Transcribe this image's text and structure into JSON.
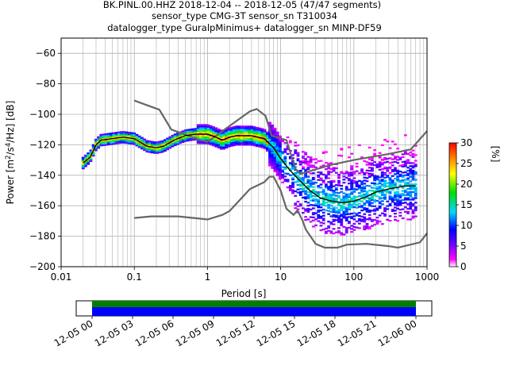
{
  "title_lines": [
    "BK.PINL.00.HHZ   2018-12-04 -- 2018-12-05  (47/47 segments)",
    "sensor_type CMG-3T sensor_sn T310034",
    "datalogger_type GuralpMinimus+ datalogger_sn MINP-DF59"
  ],
  "chart_data": {
    "type": "heatmap",
    "title": "BK.PINL.00.HHZ   2018-12-04 -- 2018-12-05  (47/47 segments)",
    "xlabel": "Period [s]",
    "ylabel_parts": [
      "Power [m",
      "2",
      "/s",
      "4",
      "/Hz] [dB]"
    ],
    "xscale": "log",
    "xlim": [
      0.01,
      1000
    ],
    "ylim": [
      -200,
      -50
    ],
    "xticks": [
      0.01,
      0.1,
      1,
      10,
      100,
      1000
    ],
    "xtick_labels": [
      "0.01",
      "0.1",
      "1",
      "10",
      "100",
      "1000"
    ],
    "yticks": [
      -200,
      -180,
      -160,
      -140,
      -120,
      -100,
      -80,
      -60
    ],
    "ytick_labels": [
      "−200",
      "−180",
      "−160",
      "−140",
      "−120",
      "−100",
      "−80",
      "−60"
    ],
    "grid": true,
    "colorbar": {
      "label": "[%]",
      "range": [
        0,
        30
      ],
      "ticks": [
        0,
        5,
        10,
        15,
        20,
        25,
        30
      ],
      "tick_labels": [
        "0",
        "5",
        "10",
        "15",
        "20",
        "25",
        "30"
      ]
    },
    "mean_curve": {
      "color": "#000000",
      "points": [
        [
          0.02,
          -132
        ],
        [
          0.025,
          -128
        ],
        [
          0.03,
          -120
        ],
        [
          0.035,
          -117
        ],
        [
          0.05,
          -116
        ],
        [
          0.07,
          -115
        ],
        [
          0.1,
          -116
        ],
        [
          0.15,
          -121
        ],
        [
          0.2,
          -122
        ],
        [
          0.25,
          -121
        ],
        [
          0.35,
          -117
        ],
        [
          0.5,
          -114
        ],
        [
          0.7,
          -113
        ],
        [
          1,
          -113
        ],
        [
          1.3,
          -115
        ],
        [
          1.6,
          -117
        ],
        [
          2,
          -115
        ],
        [
          2.5,
          -114
        ],
        [
          3,
          -114
        ],
        [
          4,
          -114
        ],
        [
          6,
          -116
        ],
        [
          8,
          -122
        ],
        [
          10,
          -129
        ],
        [
          13,
          -136
        ],
        [
          17,
          -142
        ],
        [
          25,
          -150
        ],
        [
          35,
          -155
        ],
        [
          50,
          -157
        ],
        [
          70,
          -158
        ],
        [
          100,
          -157
        ],
        [
          150,
          -154
        ],
        [
          200,
          -151
        ],
        [
          300,
          -149
        ],
        [
          500,
          -147
        ],
        [
          700,
          -147
        ]
      ]
    },
    "noise_models": {
      "color": "#666666",
      "high": [
        [
          0.1,
          -91
        ],
        [
          0.22,
          -97
        ],
        [
          0.32,
          -110
        ],
        [
          0.8,
          -117
        ],
        [
          1,
          -118
        ],
        [
          3.8,
          -98
        ],
        [
          4.7,
          -96.5
        ],
        [
          6.2,
          -101
        ],
        [
          7.5,
          -114
        ],
        [
          12,
          -117
        ],
        [
          16,
          -136
        ],
        [
          19,
          -139
        ],
        [
          50,
          -133
        ],
        [
          100,
          -130
        ],
        [
          300,
          -126
        ],
        [
          600,
          -123
        ],
        [
          1000,
          -111
        ]
      ],
      "low": [
        [
          0.1,
          -168
        ],
        [
          0.17,
          -167
        ],
        [
          0.4,
          -167
        ],
        [
          0.8,
          -168.5
        ],
        [
          1,
          -169
        ],
        [
          1.6,
          -166
        ],
        [
          2,
          -163.5
        ],
        [
          3.8,
          -149
        ],
        [
          6,
          -144.5
        ],
        [
          7,
          -141
        ],
        [
          8,
          -141
        ],
        [
          10,
          -150
        ],
        [
          12,
          -162
        ],
        [
          15,
          -166
        ],
        [
          17,
          -163
        ],
        [
          20,
          -170
        ],
        [
          22,
          -175.5
        ],
        [
          30,
          -185
        ],
        [
          40,
          -187.5
        ],
        [
          60,
          -187.5
        ],
        [
          80,
          -185.5
        ],
        [
          150,
          -185
        ],
        [
          300,
          -186.5
        ],
        [
          400,
          -187.5
        ],
        [
          800,
          -184
        ],
        [
          1000,
          -178
        ]
      ]
    }
  },
  "timeline": {
    "tick_labels": [
      "12-05 00",
      "12-05 03",
      "12-05 06",
      "12-05 09",
      "12-05 12",
      "12-05 15",
      "12-05 18",
      "12-05 21",
      "12-06 00"
    ],
    "colors": {
      "upper": "#008000",
      "lower": "#0000ff"
    }
  }
}
